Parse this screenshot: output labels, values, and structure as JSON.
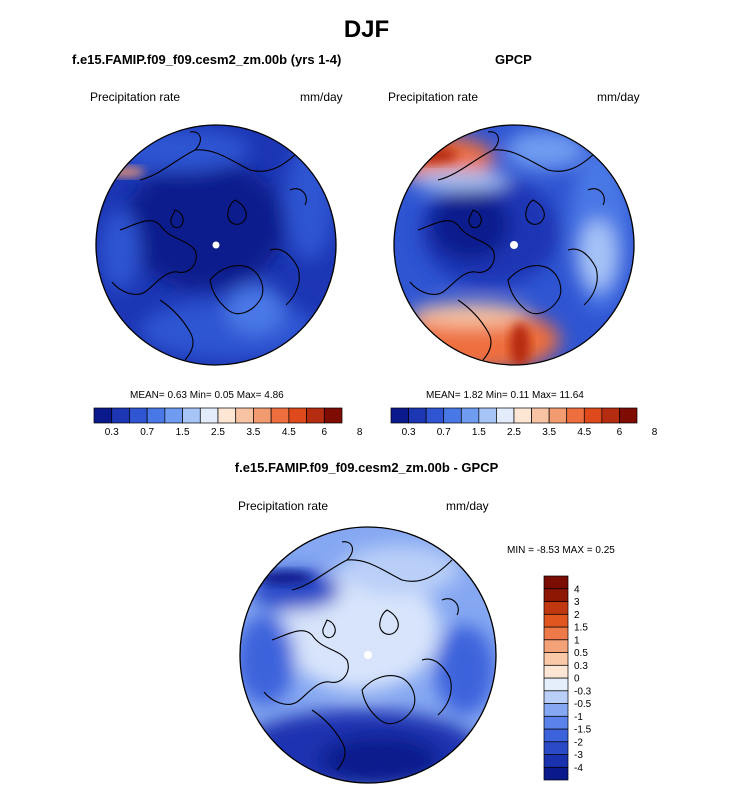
{
  "figure": {
    "title": "DJF",
    "colors": {
      "seq": [
        "#0a1a8c",
        "#1c36b4",
        "#2f55d2",
        "#4878e6",
        "#6f9bf0",
        "#a7c4f7",
        "#e2ecfb",
        "#fde6d4",
        "#f7c3a2",
        "#f29a70",
        "#ee6e3e",
        "#de4a1c",
        "#b52c10",
        "#7e0c02"
      ],
      "diff": [
        "#0a1a8c",
        "#1b32b0",
        "#2b4ac8",
        "#3d63dc",
        "#5a82ea",
        "#86a8f2",
        "#b9cff8",
        "#e5effb",
        "#fde6d4",
        "#f9c9a8",
        "#f4a278",
        "#ee7a4a",
        "#e1561f",
        "#c03710",
        "#8e1704"
      ]
    }
  },
  "chart_data": [
    {
      "type": "heatmap",
      "projection": "polar stereographic (north pole)",
      "title": "f.e15.FAMIP.f09_f09.cesm2_zm.00b (yrs 1-4)",
      "variable": "Precipitation rate",
      "units": "mm/day",
      "stats": {
        "mean_label": "MEAN=",
        "mean": "0.63",
        "min_label": "Min=",
        "min": "0.05",
        "max_label": "Max=",
        "max": "4.86"
      },
      "colorbar": {
        "levels": [
          0.2,
          0.3,
          0.5,
          0.7,
          1,
          1.5,
          2,
          2.5,
          3,
          3.5,
          4,
          4.5,
          5,
          6,
          7,
          8
        ],
        "tick_labels": [
          "0.3",
          "0.7",
          "1.5",
          "2.5",
          "3.5",
          "4.5",
          "6",
          "8"
        ]
      }
    },
    {
      "type": "heatmap",
      "projection": "polar stereographic (north pole)",
      "title": "GPCP",
      "variable": "Precipitation rate",
      "units": "mm/day",
      "stats": {
        "mean_label": "MEAN=",
        "mean": "1.82",
        "min_label": "Min=",
        "min": "0.11",
        "max_label": "Max=",
        "max": "11.64"
      },
      "colorbar": {
        "levels": [
          0.2,
          0.3,
          0.5,
          0.7,
          1,
          1.5,
          2,
          2.5,
          3,
          3.5,
          4,
          4.5,
          5,
          6,
          7,
          8
        ],
        "tick_labels": [
          "0.3",
          "0.7",
          "1.5",
          "2.5",
          "3.5",
          "4.5",
          "6",
          "8"
        ]
      }
    },
    {
      "type": "heatmap",
      "projection": "polar stereographic (north pole)",
      "title": "f.e15.FAMIP.f09_f09.cesm2_zm.00b - GPCP",
      "variable": "Precipitation rate",
      "units": "mm/day",
      "stats": {
        "min_label": "MIN =",
        "min": "-8.53",
        "max_label": "MAX =",
        "max": "0.25"
      },
      "colorbar": {
        "tick_labels": [
          "4",
          "3",
          "2",
          "1.5",
          "1",
          "0.5",
          "0.3",
          "0",
          "-0.3",
          "-0.5",
          "-1",
          "-1.5",
          "-2",
          "-3",
          "-4"
        ]
      }
    }
  ]
}
